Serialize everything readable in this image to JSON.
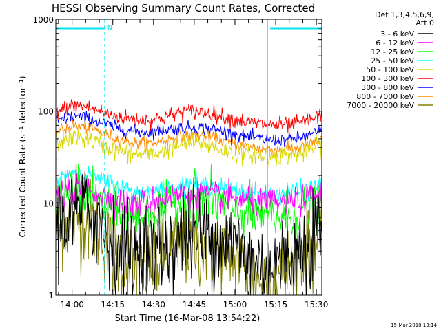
{
  "chart_data": {
    "type": "line",
    "title": "HESSI Observing Summary Count Rates, Corrected",
    "xlabel": "Start Time (16-Mar-08 13:54:22)",
    "ylabel": "Corrected Count Rate (s⁻¹ detector⁻¹)",
    "yscale": "log",
    "ylim": [
      1,
      1000
    ],
    "xlim": [
      "13:54",
      "15:32"
    ],
    "x_ticks": [
      "14:00",
      "14:15",
      "14:30",
      "14:45",
      "15:00",
      "15:15",
      "15:30"
    ],
    "y_ticks": [
      "1",
      "10",
      "100",
      "1000"
    ],
    "legend_header": [
      "Det 1,3,4,5,6,9,",
      "Att 0"
    ],
    "legend_position": "right-outside",
    "timestamp": "15-Mar-2010 13:14",
    "markers": {
      "dashed_lines": [
        "13:54",
        "14:12",
        "15:32"
      ],
      "solid_lines": [
        "15:12"
      ],
      "top_bars": [
        [
          "13:54",
          "14:12"
        ],
        [
          "15:13",
          "15:32"
        ]
      ],
      "top_bar_label": "N",
      "color": "#00e5ee"
    },
    "x": [
      "13:55",
      "14:00",
      "14:05",
      "14:10",
      "14:15",
      "14:20",
      "14:25",
      "14:30",
      "14:35",
      "14:40",
      "14:45",
      "14:50",
      "14:55",
      "15:00",
      "15:05",
      "15:10",
      "15:15",
      "15:20",
      "15:25",
      "15:30",
      "15:32"
    ],
    "series": [
      {
        "name": "3 - 6 keV",
        "color": "#000000",
        "noise": 0.6,
        "values": [
          6,
          8,
          8,
          6.5,
          3.5,
          3,
          3,
          3,
          3.5,
          4.5,
          4.5,
          4.5,
          4,
          3.5,
          2.5,
          2,
          2.2,
          2.5,
          3.5,
          5,
          6
        ]
      },
      {
        "name": "6 - 12 keV",
        "color": "#ff00ff",
        "noise": 0.18,
        "values": [
          12,
          14,
          14,
          12.5,
          11,
          10,
          10,
          10.5,
          11.5,
          12.5,
          13,
          12.5,
          11.5,
          11,
          10.5,
          10,
          10,
          10.5,
          11,
          12,
          12.5
        ]
      },
      {
        "name": "12 - 25 keV",
        "color": "#00ff00",
        "noise": 0.3,
        "values": [
          11,
          14,
          13,
          10,
          8,
          7.5,
          7,
          7.5,
          9,
          11,
          12,
          11.5,
          9.5,
          8.5,
          7.5,
          7,
          7,
          7,
          8,
          9,
          10
        ]
      },
      {
        "name": "25 - 50 keV",
        "color": "#00ffff",
        "noise": 0.12,
        "values": [
          18,
          22,
          21,
          18,
          16,
          14,
          13,
          13.5,
          14.5,
          15.5,
          16,
          15.5,
          14.5,
          13.5,
          13,
          12.5,
          12.5,
          13,
          13.5,
          15,
          17
        ]
      },
      {
        "name": "50 - 100 keV",
        "color": "#d8d800",
        "noise": 0.12,
        "values": [
          46,
          52,
          50,
          44,
          38,
          35,
          33.5,
          34,
          38,
          44,
          45,
          43,
          38,
          35,
          33.5,
          32.5,
          32.5,
          33,
          35,
          40,
          45
        ]
      },
      {
        "name": "100 - 300 keV",
        "color": "#ff0000",
        "noise": 0.1,
        "values": [
          100,
          115,
          112,
          100,
          90,
          84,
          80,
          81,
          88,
          98,
          100,
          97,
          88,
          80,
          76,
          72,
          70,
          71,
          75,
          85,
          95
        ]
      },
      {
        "name": "300 - 800 keV",
        "color": "#0000ff",
        "noise": 0.08,
        "values": [
          78,
          88,
          85,
          76,
          68,
          62,
          59,
          60,
          63,
          66,
          67,
          65,
          61,
          56,
          52,
          49.5,
          48.5,
          49,
          52,
          58,
          62
        ]
      },
      {
        "name": "800 - 7000 keV",
        "color": "#ff8c00",
        "noise": 0.08,
        "values": [
          60,
          70,
          67,
          60,
          52,
          47,
          44.5,
          45,
          49,
          54,
          55,
          53,
          48,
          44,
          41,
          39,
          38,
          39,
          41,
          46,
          50
        ]
      },
      {
        "name": "7000 - 20000 keV",
        "color": "#808000",
        "noise": 0.55,
        "values": [
          5,
          7,
          6.5,
          5,
          2.8,
          2.3,
          2.1,
          2.2,
          2.6,
          3.5,
          3.6,
          3.4,
          3,
          2.6,
          1.8,
          1.4,
          1.6,
          2,
          2.8,
          4,
          5
        ]
      }
    ]
  }
}
